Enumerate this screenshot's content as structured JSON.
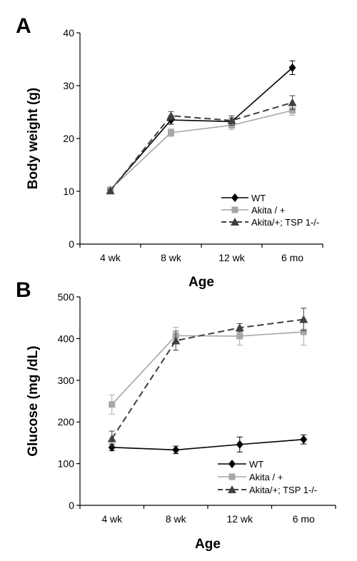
{
  "figure": {
    "panel_a_letter": "A",
    "panel_b_letter": "B"
  },
  "chart_data": [
    {
      "type": "line",
      "panel": "A",
      "categories": [
        "4 wk",
        "8 wk",
        "12 wk",
        "6 mo"
      ],
      "xlabel": "Age",
      "ylabel": "Body weight (g)",
      "ylim": [
        0,
        40
      ],
      "yticks": [
        0,
        10,
        20,
        30,
        40
      ],
      "grid": false,
      "legend_position": "bottom-right",
      "series": [
        {
          "name": "WT",
          "values": [
            10.2,
            23.5,
            23.2,
            33.4
          ],
          "errors": [
            0.3,
            0.8,
            0.7,
            1.3
          ],
          "color": "#000000",
          "marker": "diamond",
          "dash": "solid"
        },
        {
          "name": "Akita / +",
          "values": [
            10.3,
            21.1,
            22.5,
            25.3
          ],
          "errors": [
            0.3,
            0.7,
            0.8,
            0.9
          ],
          "color": "#a6a6a6",
          "marker": "square",
          "dash": "solid"
        },
        {
          "name": "Akita/+; TSP 1-/-",
          "values": [
            10.1,
            24.3,
            23.4,
            26.8
          ],
          "errors": [
            0.3,
            0.8,
            0.9,
            1.3
          ],
          "color": "#404040",
          "marker": "triangle",
          "dash": "dashed"
        }
      ]
    },
    {
      "type": "line",
      "panel": "B",
      "categories": [
        "4 wk",
        "8 wk",
        "12 wk",
        "6 mo"
      ],
      "xlabel": "Age",
      "ylabel": "Glucose (mg /dL)",
      "ylim": [
        0,
        500
      ],
      "yticks": [
        0,
        100,
        200,
        300,
        400,
        500
      ],
      "grid": false,
      "legend_position": "bottom-right",
      "series": [
        {
          "name": "WT",
          "values": [
            139,
            133,
            146,
            158
          ],
          "errors": [
            8,
            9,
            18,
            11
          ],
          "color": "#000000",
          "marker": "diamond",
          "dash": "solid"
        },
        {
          "name": "Akita / +",
          "values": [
            242,
            407,
            406,
            416
          ],
          "errors": [
            23,
            20,
            22,
            32
          ],
          "color": "#a6a6a6",
          "marker": "square",
          "dash": "solid"
        },
        {
          "name": "Akita/+; TSP 1-/-",
          "values": [
            160,
            395,
            426,
            446
          ],
          "errors": [
            18,
            23,
            10,
            27
          ],
          "color": "#404040",
          "marker": "triangle",
          "dash": "dashed"
        }
      ]
    }
  ]
}
